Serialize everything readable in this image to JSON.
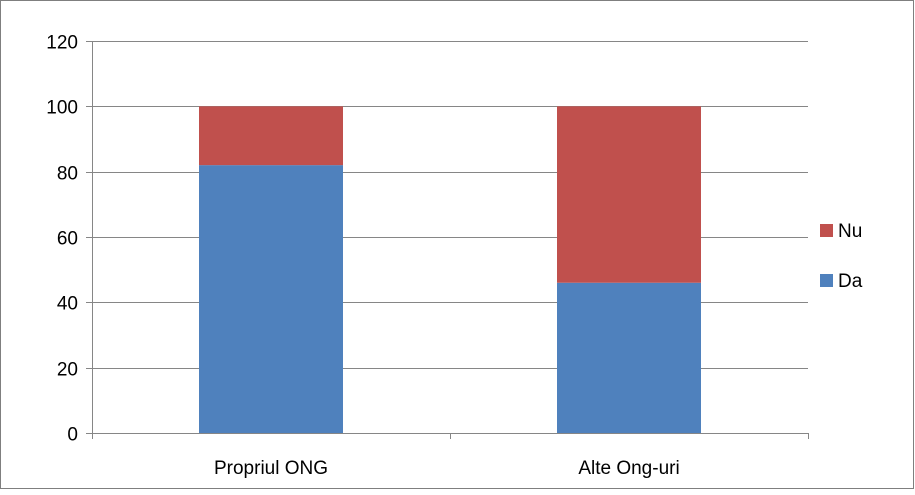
{
  "chart_data": {
    "type": "bar",
    "stacked": true,
    "categories": [
      "Propriul ONG",
      "Alte Ong-uri"
    ],
    "series": [
      {
        "name": "Da",
        "values": [
          82,
          46
        ],
        "color": "#4F81BD"
      },
      {
        "name": "Nu",
        "values": [
          18,
          54
        ],
        "color": "#C0504D"
      }
    ],
    "ylim": [
      0,
      120
    ],
    "yticks": [
      "0",
      "20",
      "40",
      "60",
      "80",
      "100",
      "120"
    ],
    "grid": true,
    "legend": "right",
    "legend_order": [
      "Nu",
      "Da"
    ]
  }
}
